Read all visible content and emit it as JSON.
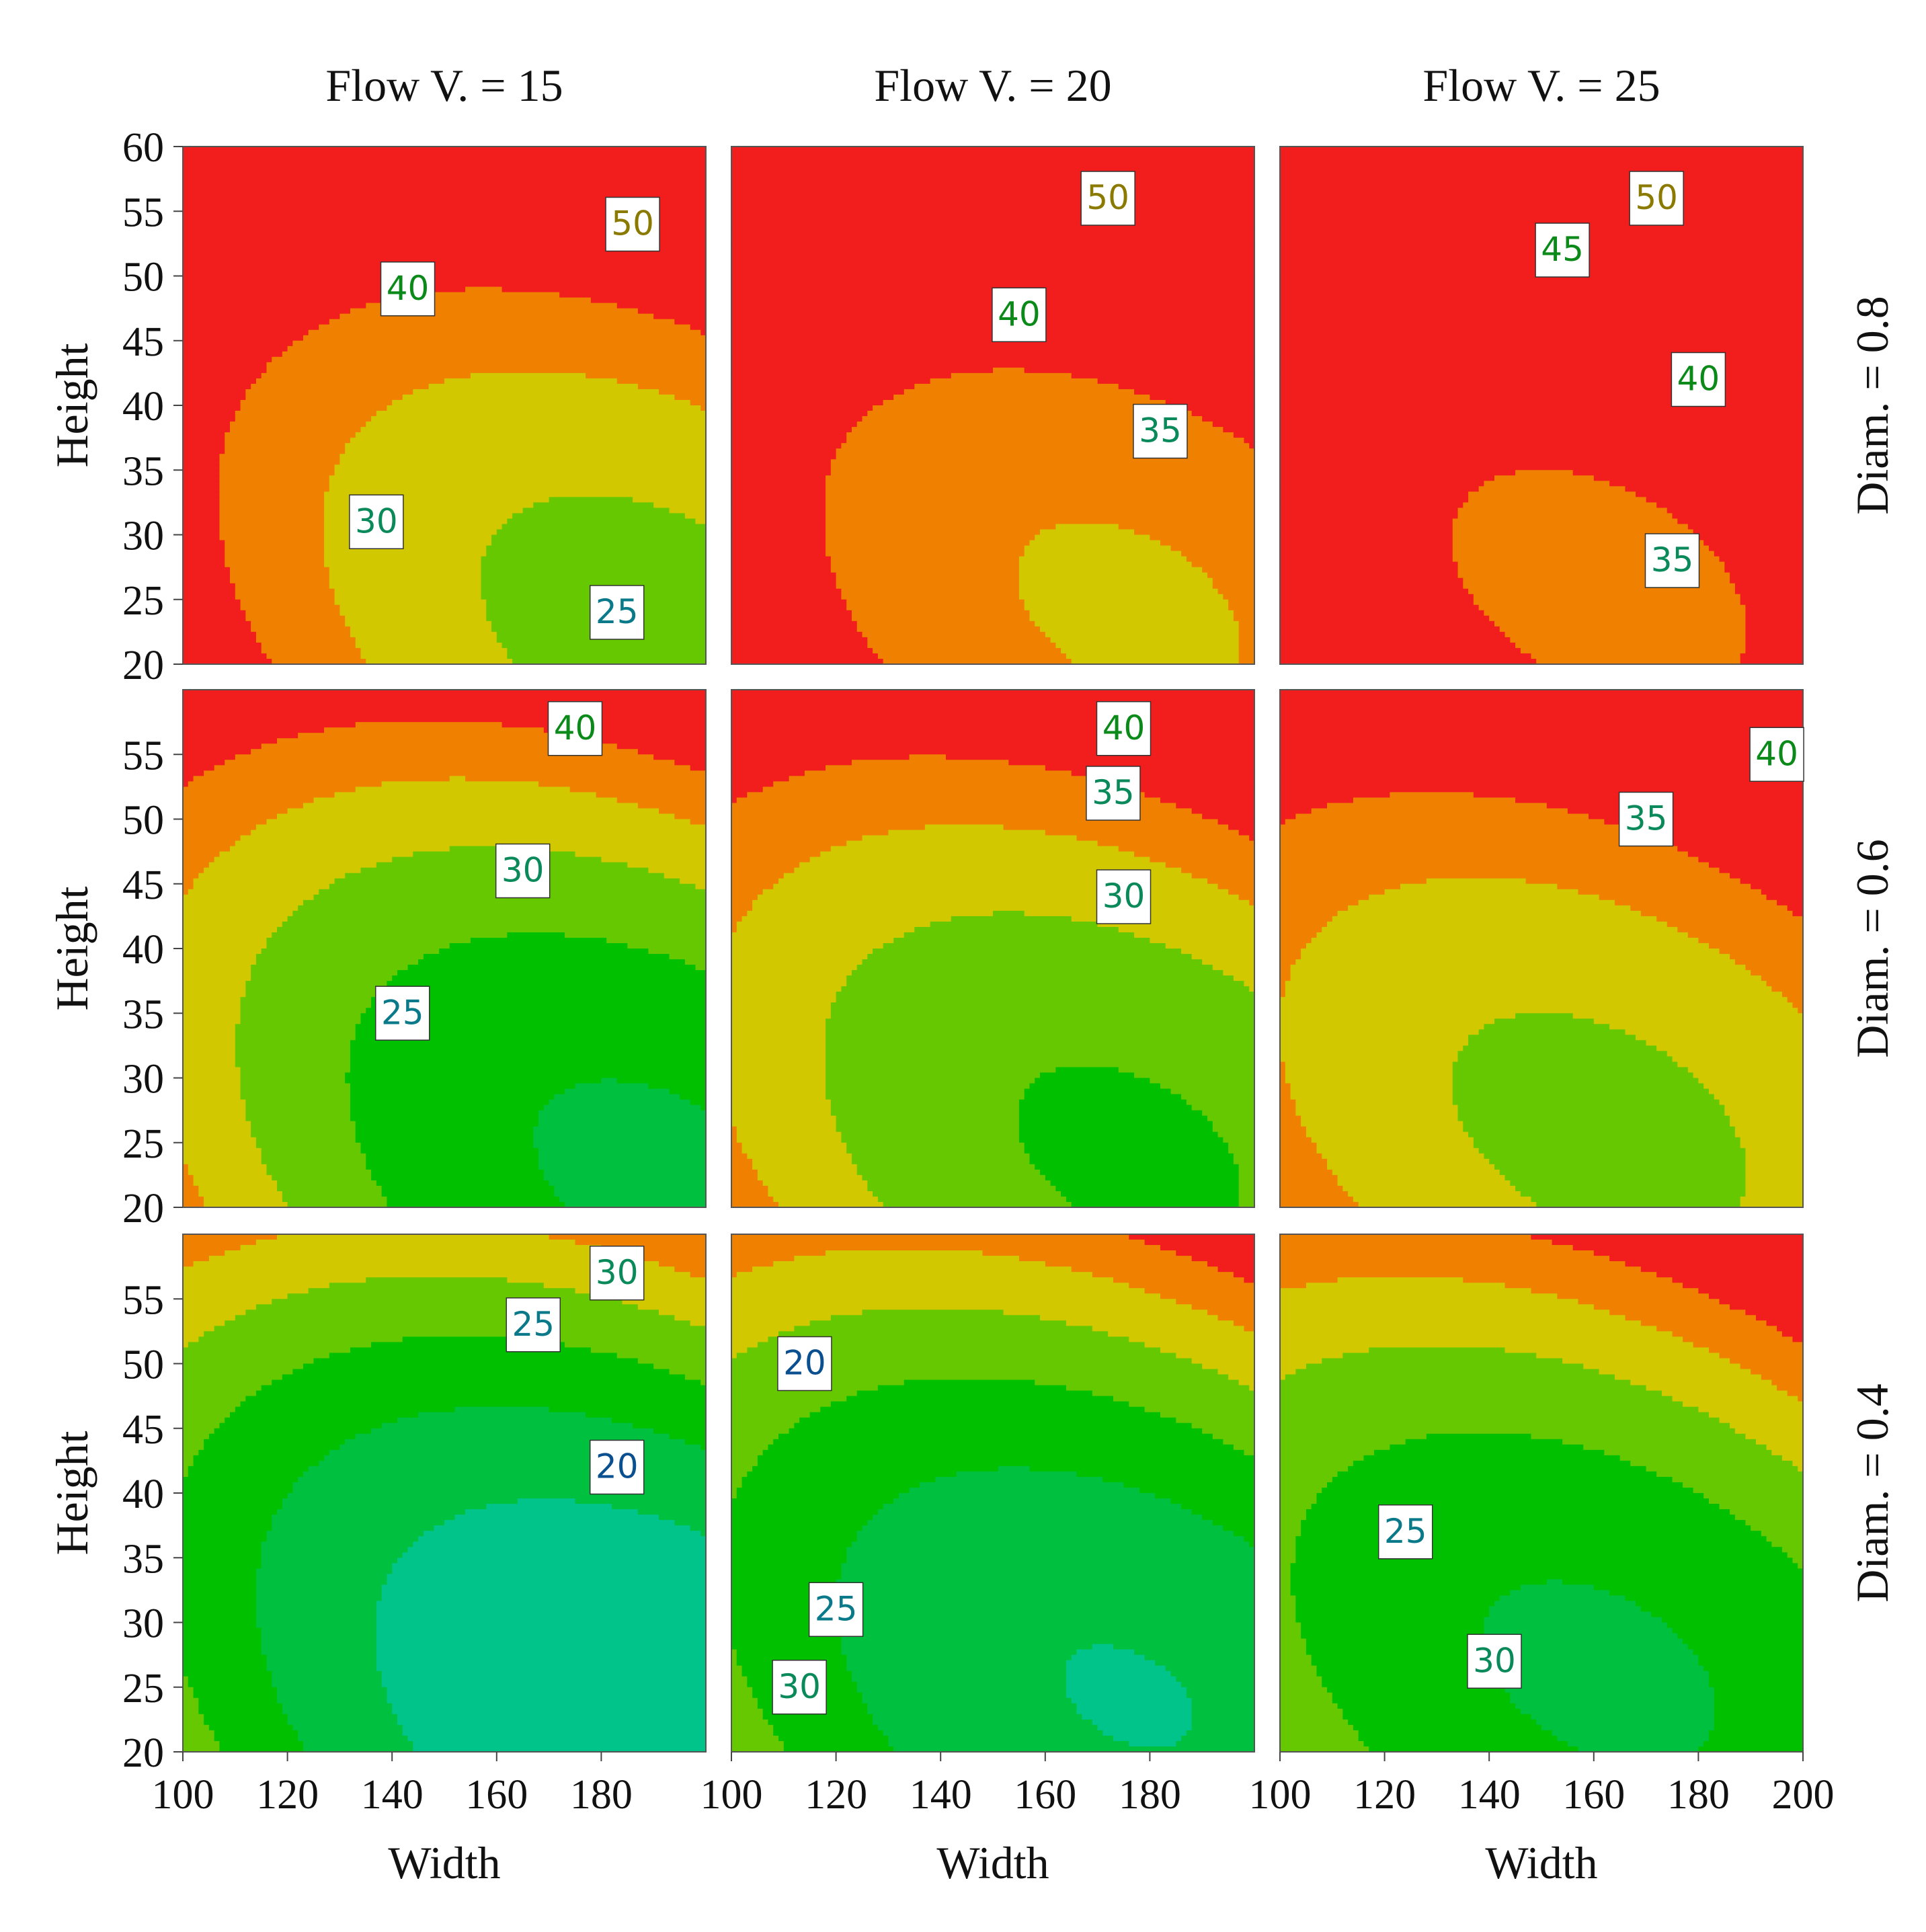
{
  "chart_data": {
    "type": "contour",
    "columns": [
      "Flow V. = 15",
      "Flow V. = 20",
      "Flow V. = 25"
    ],
    "rows": [
      "Diam. = 0.8",
      "Diam. = 0.6",
      "Diam. = 0.4"
    ],
    "xlabel": "Width",
    "ylabel": "Height",
    "xlim": [
      100,
      200
    ],
    "ylim": [
      20,
      60
    ],
    "xticks": [
      "100",
      "120",
      "140",
      "160",
      "180",
      "200"
    ],
    "yticks_top": [
      "60",
      "55",
      "50",
      "45",
      "40",
      "35",
      "30",
      "25",
      "20"
    ],
    "yticks_other": [
      "55",
      "50",
      "45",
      "40",
      "35",
      "30",
      "25",
      "20"
    ],
    "levels": [
      15,
      20,
      25,
      30,
      35,
      40,
      45,
      50,
      55,
      60
    ],
    "colors": [
      "#0066B0",
      "#0078B8",
      "#00B4C0",
      "#00C48A",
      "#00C040",
      "#00C000",
      "#66C800",
      "#D2C800",
      "#F08000",
      "#F21D1D"
    ],
    "panels": [
      {
        "row": 0,
        "col": 0,
        "model": {
          "b0": 52,
          "cw": -0.1,
          "ch": 0.3,
          "qw": 0.002,
          "qh": 0.02,
          "cwh": 0.005
        },
        "labels": [
          {
            "text": "50",
            "x": 186,
            "y": 54
          },
          {
            "text": "40",
            "x": 143,
            "y": 49
          },
          {
            "text": "30",
            "x": 137,
            "y": 31
          },
          {
            "text": "25",
            "x": 183,
            "y": 24
          }
        ]
      },
      {
        "row": 0,
        "col": 1,
        "model": {
          "b0": 56.5,
          "cw": -0.05,
          "ch": 0.3,
          "qw": 0.002,
          "qh": 0.02,
          "cwh": 0.005
        },
        "labels": [
          {
            "text": "50",
            "x": 172,
            "y": 56
          },
          {
            "text": "40",
            "x": 155,
            "y": 47
          },
          {
            "text": "35",
            "x": 182,
            "y": 38
          }
        ]
      },
      {
        "row": 0,
        "col": 2,
        "model": {
          "b0": 60,
          "cw": 0,
          "ch": 0.3,
          "qw": 0.002,
          "qh": 0.02,
          "cwh": 0.005
        },
        "labels": [
          {
            "text": "50",
            "x": 172,
            "y": 56
          },
          {
            "text": "45",
            "x": 154,
            "y": 52
          },
          {
            "text": "40",
            "x": 180,
            "y": 42
          },
          {
            "text": "35",
            "x": 175,
            "y": 28
          }
        ]
      },
      {
        "row": 1,
        "col": 0,
        "model": {
          "b0": 43,
          "cw": -0.1,
          "ch": 0.3,
          "qw": 0.002,
          "qh": 0.02,
          "cwh": 0.005
        },
        "labels": [
          {
            "text": "40",
            "x": 175,
            "y": 57
          },
          {
            "text": "30",
            "x": 165,
            "y": 46
          },
          {
            "text": "25",
            "x": 142,
            "y": 35
          }
        ]
      },
      {
        "row": 1,
        "col": 1,
        "model": {
          "b0": 46.5,
          "cw": -0.05,
          "ch": 0.3,
          "qw": 0.002,
          "qh": 0.02,
          "cwh": 0.005
        },
        "labels": [
          {
            "text": "40",
            "x": 175,
            "y": 57
          },
          {
            "text": "35",
            "x": 173,
            "y": 52
          },
          {
            "text": "30",
            "x": 175,
            "y": 44
          }
        ]
      },
      {
        "row": 1,
        "col": 2,
        "model": {
          "b0": 50,
          "cw": 0,
          "ch": 0.3,
          "qw": 0.002,
          "qh": 0.02,
          "cwh": 0.005
        },
        "labels": [
          {
            "text": "40",
            "x": 195,
            "y": 55
          },
          {
            "text": "35",
            "x": 170,
            "y": 50
          }
        ]
      },
      {
        "row": 2,
        "col": 0,
        "model": {
          "b0": 34,
          "cw": -0.1,
          "ch": 0.3,
          "qw": 0.002,
          "qh": 0.02,
          "cwh": 0.005
        },
        "labels": [
          {
            "text": "30",
            "x": 183,
            "y": 57
          },
          {
            "text": "25",
            "x": 167,
            "y": 53
          },
          {
            "text": "20",
            "x": 183,
            "y": 42
          }
        ]
      },
      {
        "row": 2,
        "col": 1,
        "model": {
          "b0": 37,
          "cw": -0.05,
          "ch": 0.3,
          "qw": 0.002,
          "qh": 0.02,
          "cwh": 0.005
        },
        "labels": [
          {
            "text": "20",
            "x": 114,
            "y": 50
          },
          {
            "text": "25",
            "x": 120,
            "y": 31
          },
          {
            "text": "30",
            "x": 113,
            "y": 25
          }
        ]
      },
      {
        "row": 2,
        "col": 2,
        "model": {
          "b0": 40.5,
          "cw": 0,
          "ch": 0.3,
          "qw": 0.002,
          "qh": 0.02,
          "cwh": 0.005
        },
        "labels": [
          {
            "text": "25",
            "x": 124,
            "y": 37
          },
          {
            "text": "30",
            "x": 141,
            "y": 27
          }
        ]
      }
    ]
  }
}
